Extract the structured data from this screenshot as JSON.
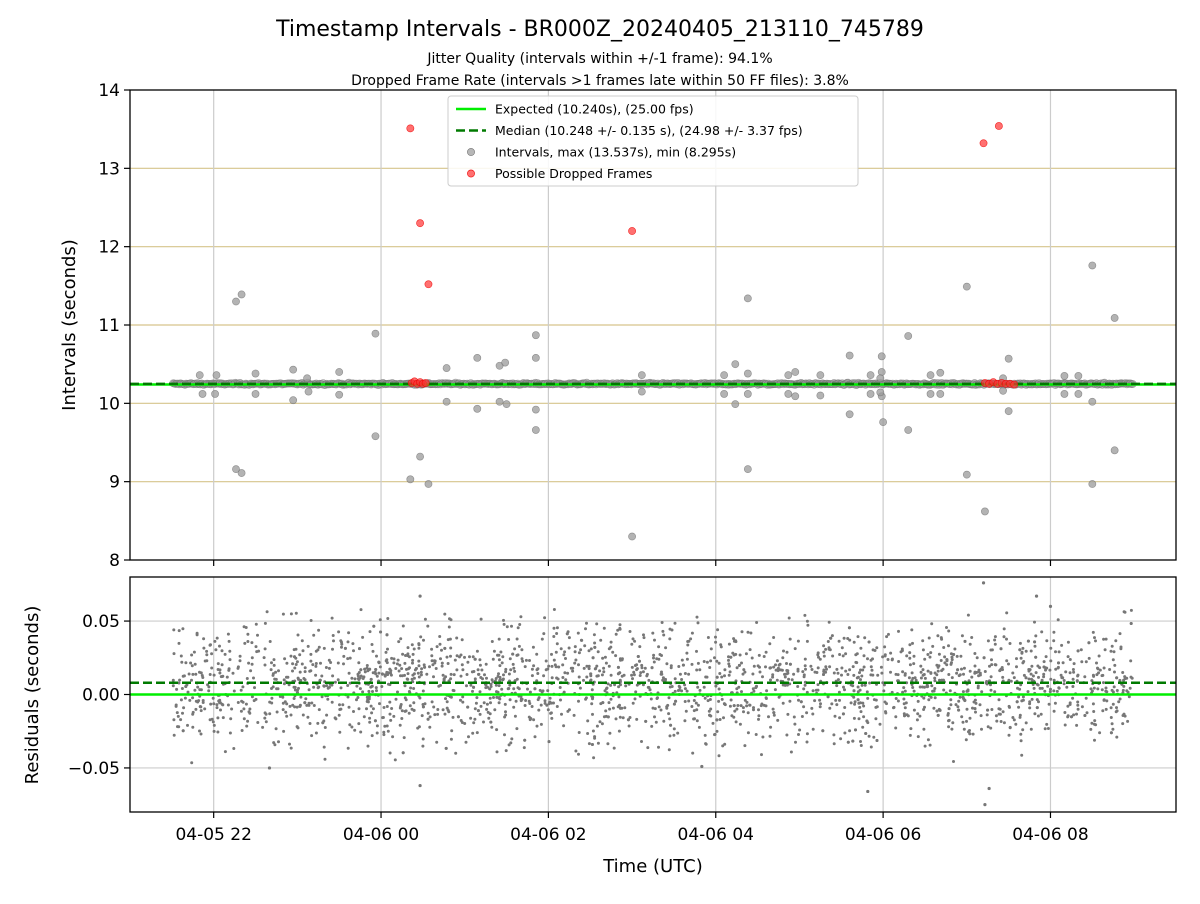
{
  "chart_data": {
    "type": "scatter",
    "title": "Timestamp Intervals - BR000Z_20240405_213110_745789",
    "subtitle_lines": [
      "Jitter Quality (intervals within +/-1 frame): 94.1%",
      "Dropped Frame Rate (intervals >1 frames late within 50 FF files): 3.8%"
    ],
    "xlabel": "Time (UTC)",
    "x_range": [
      "2024-04-05 21:00",
      "2024-04-06 09:30"
    ],
    "x_ticks": [
      {
        "time": "2024-04-05 22:00",
        "label": "04-05 22"
      },
      {
        "time": "2024-04-06 00:00",
        "label": "04-06 00"
      },
      {
        "time": "2024-04-06 02:00",
        "label": "04-06 02"
      },
      {
        "time": "2024-04-06 04:00",
        "label": "04-06 04"
      },
      {
        "time": "2024-04-06 06:00",
        "label": "04-06 06"
      },
      {
        "time": "2024-04-06 08:00",
        "label": "04-06 08"
      }
    ],
    "data_time_range": [
      "2024-04-05 21:31",
      "2024-04-06 08:59"
    ],
    "top_panel": {
      "ylabel": "Intervals (seconds)",
      "ylim": [
        8,
        14
      ],
      "y_ticks": [
        "8",
        "9",
        "10",
        "11",
        "12",
        "13",
        "14"
      ],
      "grid": true,
      "legend_position": "top-center",
      "expected_value": 10.24,
      "median_value": 10.248,
      "legend": [
        {
          "key": "expected",
          "label": "Expected (10.240s), (25.00 fps)",
          "style": "solid-line",
          "color": "#00ee00"
        },
        {
          "key": "median",
          "label": "Median (10.248 +/- 0.135 s), (24.98 +/- 3.37 fps)",
          "style": "dashed-line",
          "color": "#007a00"
        },
        {
          "key": "intervals",
          "label": "Intervals, max (13.537s), min (8.295s)",
          "style": "marker",
          "color": "#999999"
        },
        {
          "key": "dropped",
          "label": "Possible Dropped Frames",
          "style": "marker",
          "color": "#ff3333"
        }
      ],
      "bulk_interval_value": 10.248,
      "outlier_intervals": [
        {
          "t": "2024-04-05 21:50",
          "y": 10.36
        },
        {
          "t": "2024-04-05 22:02",
          "y": 10.36
        },
        {
          "t": "2024-04-05 22:01",
          "y": 10.12
        },
        {
          "t": "2024-04-05 21:52",
          "y": 10.12
        },
        {
          "t": "2024-04-05 22:16",
          "y": 11.3
        },
        {
          "t": "2024-04-05 22:20",
          "y": 11.39
        },
        {
          "t": "2024-04-05 22:16",
          "y": 9.16
        },
        {
          "t": "2024-04-05 22:20",
          "y": 9.11
        },
        {
          "t": "2024-04-05 22:30",
          "y": 10.38
        },
        {
          "t": "2024-04-05 22:30",
          "y": 10.12
        },
        {
          "t": "2024-04-05 22:57",
          "y": 10.43
        },
        {
          "t": "2024-04-05 22:57",
          "y": 10.04
        },
        {
          "t": "2024-04-05 23:07",
          "y": 10.32
        },
        {
          "t": "2024-04-05 23:08",
          "y": 10.15
        },
        {
          "t": "2024-04-05 23:30",
          "y": 10.4
        },
        {
          "t": "2024-04-05 23:30",
          "y": 10.11
        },
        {
          "t": "2024-04-05 23:56",
          "y": 10.89
        },
        {
          "t": "2024-04-05 23:56",
          "y": 9.58
        },
        {
          "t": "2024-04-06 00:21",
          "y": 9.03
        },
        {
          "t": "2024-04-06 00:28",
          "y": 9.32
        },
        {
          "t": "2024-04-06 00:34",
          "y": 8.97
        },
        {
          "t": "2024-04-06 00:47",
          "y": 10.45
        },
        {
          "t": "2024-04-06 00:47",
          "y": 10.02
        },
        {
          "t": "2024-04-06 01:09",
          "y": 10.58
        },
        {
          "t": "2024-04-06 01:09",
          "y": 9.93
        },
        {
          "t": "2024-04-06 01:25",
          "y": 10.48
        },
        {
          "t": "2024-04-06 01:29",
          "y": 10.52
        },
        {
          "t": "2024-04-06 01:25",
          "y": 10.02
        },
        {
          "t": "2024-04-06 01:30",
          "y": 9.99
        },
        {
          "t": "2024-04-06 01:51",
          "y": 10.87
        },
        {
          "t": "2024-04-06 01:51",
          "y": 10.58
        },
        {
          "t": "2024-04-06 01:51",
          "y": 9.92
        },
        {
          "t": "2024-04-06 01:51",
          "y": 9.66
        },
        {
          "t": "2024-04-06 03:00",
          "y": 8.3
        },
        {
          "t": "2024-04-06 03:07",
          "y": 10.36
        },
        {
          "t": "2024-04-06 03:07",
          "y": 10.15
        },
        {
          "t": "2024-04-06 04:06",
          "y": 10.36
        },
        {
          "t": "2024-04-06 04:06",
          "y": 10.12
        },
        {
          "t": "2024-04-06 04:14",
          "y": 10.5
        },
        {
          "t": "2024-04-06 04:14",
          "y": 9.99
        },
        {
          "t": "2024-04-06 04:23",
          "y": 11.34
        },
        {
          "t": "2024-04-06 04:23",
          "y": 9.16
        },
        {
          "t": "2024-04-06 04:23",
          "y": 10.38
        },
        {
          "t": "2024-04-06 04:23",
          "y": 10.12
        },
        {
          "t": "2024-04-06 04:52",
          "y": 10.36
        },
        {
          "t": "2024-04-06 04:52",
          "y": 10.12
        },
        {
          "t": "2024-04-06 04:57",
          "y": 10.4
        },
        {
          "t": "2024-04-06 04:57",
          "y": 10.09
        },
        {
          "t": "2024-04-06 05:15",
          "y": 10.36
        },
        {
          "t": "2024-04-06 05:15",
          "y": 10.1
        },
        {
          "t": "2024-04-06 05:36",
          "y": 10.61
        },
        {
          "t": "2024-04-06 05:36",
          "y": 9.86
        },
        {
          "t": "2024-04-06 05:51",
          "y": 10.36
        },
        {
          "t": "2024-04-06 05:51",
          "y": 10.12
        },
        {
          "t": "2024-04-06 05:59",
          "y": 10.4
        },
        {
          "t": "2024-04-06 05:59",
          "y": 10.09
        },
        {
          "t": "2024-04-06 05:58",
          "y": 10.32
        },
        {
          "t": "2024-04-06 05:58",
          "y": 10.14
        },
        {
          "t": "2024-04-06 06:00",
          "y": 9.76
        },
        {
          "t": "2024-04-06 05:59",
          "y": 10.6
        },
        {
          "t": "2024-04-06 06:18",
          "y": 10.86
        },
        {
          "t": "2024-04-06 06:18",
          "y": 9.66
        },
        {
          "t": "2024-04-06 06:34",
          "y": 10.36
        },
        {
          "t": "2024-04-06 06:34",
          "y": 10.12
        },
        {
          "t": "2024-04-06 06:41",
          "y": 10.39
        },
        {
          "t": "2024-04-06 06:41",
          "y": 10.12
        },
        {
          "t": "2024-04-06 07:00",
          "y": 11.49
        },
        {
          "t": "2024-04-06 07:00",
          "y": 9.09
        },
        {
          "t": "2024-04-06 07:13",
          "y": 8.62
        },
        {
          "t": "2024-04-06 07:26",
          "y": 10.32
        },
        {
          "t": "2024-04-06 07:26",
          "y": 10.16
        },
        {
          "t": "2024-04-06 07:30",
          "y": 10.57
        },
        {
          "t": "2024-04-06 07:30",
          "y": 9.9
        },
        {
          "t": "2024-04-06 08:10",
          "y": 10.35
        },
        {
          "t": "2024-04-06 08:10",
          "y": 10.12
        },
        {
          "t": "2024-04-06 08:20",
          "y": 10.35
        },
        {
          "t": "2024-04-06 08:20",
          "y": 10.12
        },
        {
          "t": "2024-04-06 08:30",
          "y": 11.76
        },
        {
          "t": "2024-04-06 08:30",
          "y": 10.02
        },
        {
          "t": "2024-04-06 08:30",
          "y": 8.97
        },
        {
          "t": "2024-04-06 08:46",
          "y": 11.09
        },
        {
          "t": "2024-04-06 08:46",
          "y": 9.4
        }
      ],
      "dropped_frames": [
        {
          "t": "2024-04-06 00:21",
          "y": 13.51
        },
        {
          "t": "2024-04-06 00:28",
          "y": 12.3
        },
        {
          "t": "2024-04-06 00:34",
          "y": 11.52
        },
        {
          "t": "2024-04-06 03:00",
          "y": 12.2
        },
        {
          "t": "2024-04-06 07:12",
          "y": 13.32
        },
        {
          "t": "2024-04-06 07:23",
          "y": 13.54
        },
        {
          "t": "2024-04-06 00:22",
          "y": 10.26
        },
        {
          "t": "2024-04-06 00:24",
          "y": 10.28
        },
        {
          "t": "2024-04-06 00:26",
          "y": 10.25
        },
        {
          "t": "2024-04-06 00:28",
          "y": 10.27
        },
        {
          "t": "2024-04-06 00:30",
          "y": 10.25
        },
        {
          "t": "2024-04-06 00:32",
          "y": 10.26
        },
        {
          "t": "2024-04-06 07:13",
          "y": 10.26
        },
        {
          "t": "2024-04-06 07:16",
          "y": 10.25
        },
        {
          "t": "2024-04-06 07:19",
          "y": 10.27
        },
        {
          "t": "2024-04-06 07:22",
          "y": 10.25
        },
        {
          "t": "2024-04-06 07:25",
          "y": 10.26
        },
        {
          "t": "2024-04-06 07:28",
          "y": 10.25
        },
        {
          "t": "2024-04-06 07:31",
          "y": 10.25
        },
        {
          "t": "2024-04-06 07:34",
          "y": 10.24
        }
      ]
    },
    "bottom_panel": {
      "ylabel": "Residuals (seconds)",
      "ylim": [
        -0.08,
        0.08
      ],
      "y_ticks": [
        {
          "value": 0.05,
          "label": "0.05"
        },
        {
          "value": 0.0,
          "label": "0.00"
        },
        {
          "value": -0.05,
          "label": "−0.05"
        }
      ],
      "grid": true,
      "expected_residual": 0.0,
      "median_residual": 0.008,
      "residual_spread_approx": 0.02,
      "notable_residuals": [
        {
          "t": "2024-04-06 07:12",
          "y": 0.076
        },
        {
          "t": "2024-04-06 07:13",
          "y": -0.075
        },
        {
          "t": "2024-04-06 00:28",
          "y": 0.067
        },
        {
          "t": "2024-04-06 07:50",
          "y": 0.067
        },
        {
          "t": "2024-04-06 00:28",
          "y": -0.062
        },
        {
          "t": "2024-04-06 05:49",
          "y": -0.066
        },
        {
          "t": "2024-04-06 07:16",
          "y": -0.064
        },
        {
          "t": "2024-04-06 03:50",
          "y": -0.049
        },
        {
          "t": "2024-04-05 22:40",
          "y": -0.05
        },
        {
          "t": "2024-04-06 08:00",
          "y": 0.06
        }
      ]
    },
    "colors": {
      "expected": "#00ee00",
      "median": "#007a00",
      "intervals": "#999999",
      "dropped": "#ff3333",
      "residual": "#777777",
      "hgrid_top": "#d6c48c",
      "grid": "#cccccc"
    }
  }
}
